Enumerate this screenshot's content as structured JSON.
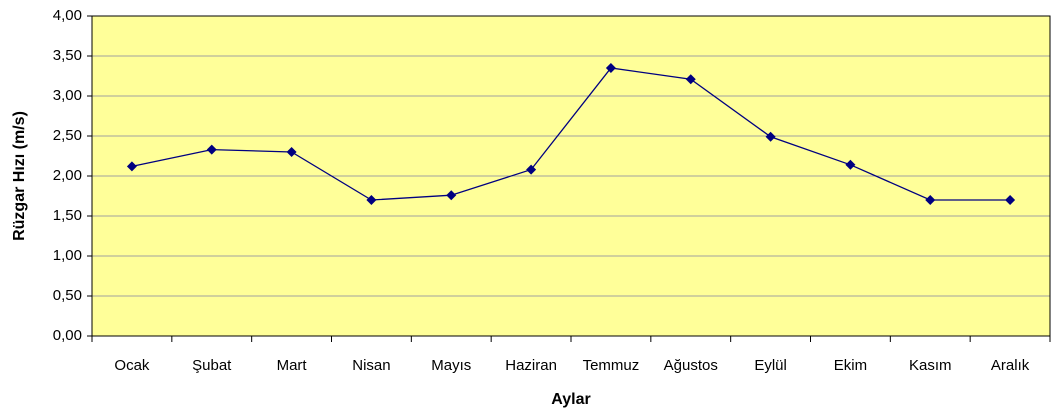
{
  "chart_data": {
    "type": "line",
    "x_label": "Aylar",
    "y_label": "Rüzgar Hızı (m/s)",
    "categories": [
      "Ocak",
      "Şubat",
      "Mart",
      "Nisan",
      "Mayıs",
      "Haziran",
      "Temmuz",
      "Ağustos",
      "Eylül",
      "Ekim",
      "Kasım",
      "Aralık"
    ],
    "values": [
      2.12,
      2.33,
      2.3,
      1.7,
      1.76,
      2.08,
      3.35,
      3.21,
      2.49,
      2.14,
      1.7,
      1.7
    ],
    "color": "#000080",
    "background": "#ffff99",
    "ylim": [
      0,
      4
    ],
    "yticks": [
      {
        "value": 0,
        "label": "0,00"
      },
      {
        "value": 0.5,
        "label": "0,50"
      },
      {
        "value": 1,
        "label": "1,00"
      },
      {
        "value": 1.5,
        "label": "1,50"
      },
      {
        "value": 2,
        "label": "2,00"
      },
      {
        "value": 2.5,
        "label": "2,50"
      },
      {
        "value": 3,
        "label": "3,00"
      },
      {
        "value": 3.5,
        "label": "3,50"
      },
      {
        "value": 4,
        "label": "4,00"
      }
    ],
    "grid": true
  }
}
